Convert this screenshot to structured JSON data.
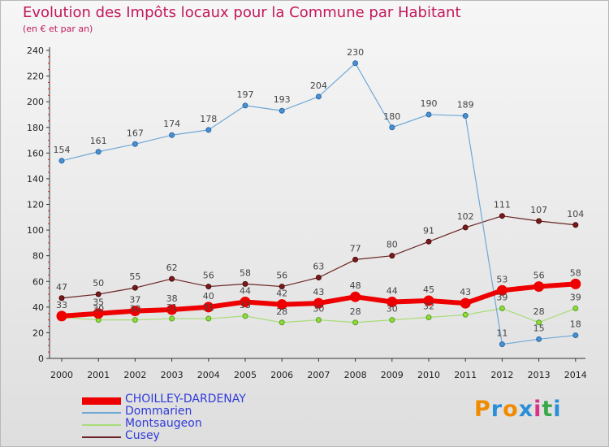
{
  "title": "Evolution des Impôts locaux pour la Commune par Habitant",
  "subtitle": "(en € et par an)",
  "logo": {
    "text": "Proxiti",
    "colors": [
      "#f08a00",
      "#2a8fd8",
      "#f08a00",
      "#2a8fd8",
      "#d63384",
      "#3aa84a",
      "#2a8fd8"
    ]
  },
  "chart_data": {
    "type": "line",
    "x": [
      "2000",
      "2001",
      "2002",
      "2003",
      "2004",
      "2005",
      "2006",
      "2007",
      "2008",
      "2009",
      "2010",
      "2011",
      "2012",
      "2013",
      "2014"
    ],
    "ylim": [
      0,
      240
    ],
    "yticks": [
      0,
      20,
      40,
      60,
      80,
      100,
      120,
      140,
      160,
      180,
      200,
      220,
      240
    ],
    "grid": false,
    "legend_position": "bottom-left",
    "series": [
      {
        "name": "CHOILLEY-DARDENAY",
        "color": "#ee0000",
        "values": [
          33,
          35,
          37,
          38,
          40,
          44,
          42,
          43,
          48,
          44,
          45,
          43,
          53,
          56,
          58
        ]
      },
      {
        "name": "Dommarien",
        "color": "#6fa8d6",
        "values": [
          154,
          161,
          167,
          174,
          178,
          197,
          193,
          204,
          230,
          180,
          190,
          189,
          11,
          15,
          18
        ]
      },
      {
        "name": "Montsaugeon",
        "color": "#a8dc78",
        "values": [
          32,
          30,
          30,
          31,
          31,
          33,
          28,
          30,
          28,
          30,
          32,
          34,
          39,
          28,
          39
        ]
      },
      {
        "name": "Cusey",
        "color": "#6a2222",
        "values": [
          47,
          50,
          55,
          62,
          56,
          58,
          56,
          63,
          77,
          80,
          91,
          102,
          111,
          107,
          104
        ]
      }
    ],
    "data_labels": [
      {
        "series": 0,
        "labels": [
          "33",
          "35",
          "37",
          "38",
          "40",
          "44",
          "42",
          "43",
          "48",
          "44",
          "45",
          "43",
          "53",
          "56",
          "58"
        ]
      },
      {
        "series": 1,
        "labels": [
          "154",
          "161",
          "167",
          "174",
          "178",
          "197",
          "193",
          "204",
          "230",
          "180",
          "190",
          "189",
          "11",
          "15",
          "18"
        ]
      },
      {
        "series": 2,
        "labels": [
          "",
          "30",
          "30",
          "31",
          "31",
          "33",
          "28",
          "30",
          "28",
          "30",
          "32",
          "",
          "39",
          "28",
          "39"
        ]
      },
      {
        "series": 3,
        "labels": [
          "47",
          "50",
          "55",
          "62",
          "56",
          "58",
          "56",
          "63",
          "77",
          "80",
          "91",
          "102",
          "111",
          "107",
          "104"
        ]
      }
    ]
  }
}
